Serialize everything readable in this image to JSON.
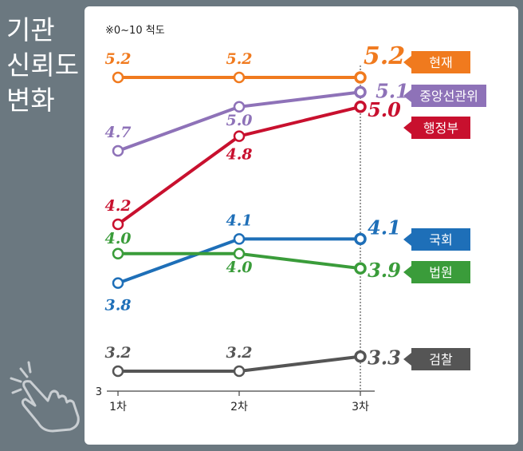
{
  "title_lines": [
    "기관",
    "신뢰도",
    "변화"
  ],
  "chart_data": {
    "type": "line",
    "subtitle": "※0~10 척도",
    "categories": [
      "1차",
      "2차",
      "3차"
    ],
    "y_axis_min_label": "3",
    "ylim": [
      3,
      5.4
    ],
    "series": [
      {
        "name": "현재",
        "values": [
          5.2,
          5.2,
          5.2
        ],
        "labels": [
          "5.2",
          "5.2",
          "5.2"
        ],
        "color": "#f07a1e",
        "tag_text": "#ffffff"
      },
      {
        "name": "중앙선관위",
        "values": [
          4.7,
          5.0,
          5.1
        ],
        "labels": [
          "4.7",
          "5.0",
          "5.1"
        ],
        "color": "#8e72b8",
        "tag_text": "#ffffff"
      },
      {
        "name": "행정부",
        "values": [
          4.2,
          4.8,
          5.0
        ],
        "labels": [
          "4.2",
          "4.8",
          "5.0"
        ],
        "color": "#c8102e",
        "tag_text": "#ffffff"
      },
      {
        "name": "국회",
        "values": [
          3.8,
          4.1,
          4.1
        ],
        "labels": [
          "3.8",
          "4.1",
          "4.1"
        ],
        "color": "#1e6fb8",
        "tag_text": "#ffffff"
      },
      {
        "name": "법원",
        "values": [
          4.0,
          4.0,
          3.9
        ],
        "labels": [
          "4.0",
          "4.0",
          "3.9"
        ],
        "color": "#3a9c3a",
        "tag_text": "#ffffff"
      },
      {
        "name": "검찰",
        "values": [
          3.2,
          3.2,
          3.3
        ],
        "labels": [
          "3.2",
          "3.2",
          "3.3"
        ],
        "color": "#555555",
        "tag_text": "#ffffff"
      }
    ]
  }
}
